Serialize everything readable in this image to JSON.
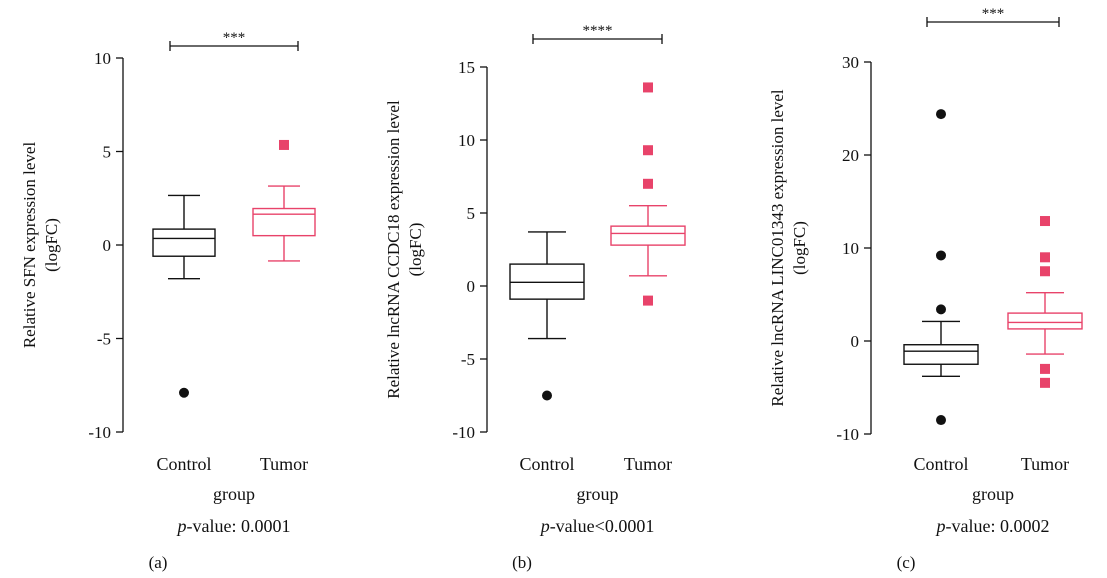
{
  "colors": {
    "control": "#111111",
    "tumor": "#e8436a",
    "axis": "#111111"
  },
  "chart_data": [
    {
      "type": "box",
      "panel_label": "(a)",
      "ylabel_lines": [
        "Relative SFN expression level",
        "(logFC)"
      ],
      "xlabel": "group",
      "categories": [
        "Control",
        "Tumor"
      ],
      "ylim": [
        -10,
        10
      ],
      "yticks": [
        10,
        5,
        0,
        -5,
        -10
      ],
      "ytick_labels": [
        "10",
        "5",
        "0",
        "-5",
        "-10"
      ],
      "boxes": [
        {
          "name": "Control",
          "whisker_low": -1.8,
          "q1": -0.6,
          "median": 0.35,
          "q3": 0.85,
          "whisker_high": 2.65,
          "outliers": [
            -7.9
          ]
        },
        {
          "name": "Tumor",
          "whisker_low": -0.85,
          "q1": 0.5,
          "median": 1.65,
          "q3": 1.95,
          "whisker_high": 3.15,
          "outliers": [
            5.35
          ]
        }
      ],
      "significance": "***",
      "pvalue_prefix": "p",
      "pvalue_rest": "-value: 0.0001"
    },
    {
      "type": "box",
      "panel_label": "(b)",
      "ylabel_lines": [
        "Relative lncRNA CCDC18 expression level",
        "(logFC)"
      ],
      "xlabel": "group",
      "categories": [
        "Control",
        "Tumor"
      ],
      "ylim": [
        -10,
        15
      ],
      "yticks": [
        15,
        10,
        5,
        0,
        -5,
        -10
      ],
      "ytick_labels": [
        "15",
        "10",
        "5",
        "0",
        "-5",
        "-10"
      ],
      "boxes": [
        {
          "name": "Control",
          "whisker_low": -3.6,
          "q1": -0.9,
          "median": 0.25,
          "q3": 1.5,
          "whisker_high": 3.7,
          "outliers": [
            -7.5
          ]
        },
        {
          "name": "Tumor",
          "whisker_low": 0.7,
          "q1": 2.8,
          "median": 3.6,
          "q3": 4.1,
          "whisker_high": 5.5,
          "outliers": [
            13.6,
            9.3,
            7.0,
            -1.0
          ]
        }
      ],
      "significance": "****",
      "pvalue_prefix": "p",
      "pvalue_rest": "-value<0.0001"
    },
    {
      "type": "box",
      "panel_label": "(c)",
      "ylabel_lines": [
        "Relative lncRNA LINC01343 expression level",
        "(logFC)"
      ],
      "xlabel": "group",
      "categories": [
        "Control",
        "Tumor"
      ],
      "ylim": [
        -10,
        30
      ],
      "yticks": [
        30,
        20,
        10,
        0,
        -10
      ],
      "ytick_labels": [
        "30",
        "20",
        "10",
        "0",
        "-10"
      ],
      "boxes": [
        {
          "name": "Control",
          "whisker_low": -3.8,
          "q1": -2.5,
          "median": -1.1,
          "q3": -0.4,
          "whisker_high": 2.1,
          "outliers": [
            24.4,
            9.2,
            3.4,
            -8.5
          ]
        },
        {
          "name": "Tumor",
          "whisker_low": -1.4,
          "q1": 1.3,
          "median": 2.0,
          "q3": 3.0,
          "whisker_high": 5.2,
          "outliers": [
            12.9,
            9.0,
            7.5,
            -3.0,
            -4.5
          ]
        }
      ],
      "significance": "***",
      "pvalue_prefix": "p",
      "pvalue_rest": "-value: 0.0002"
    }
  ]
}
